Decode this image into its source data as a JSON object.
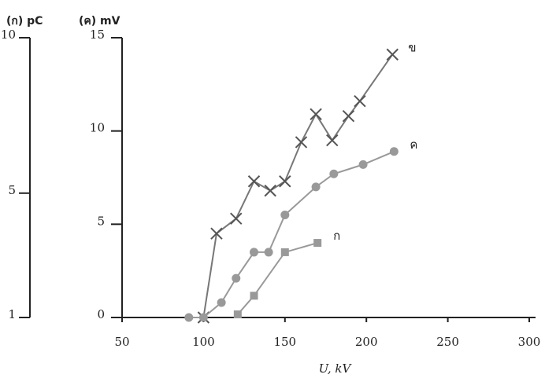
{
  "chart_data": {
    "type": "line",
    "xlabel": "U, kV",
    "ylabel": "(ค) mV",
    "y2label": "(ก) pC",
    "xlim": [
      50,
      300
    ],
    "xticks": [
      50,
      100,
      150,
      200,
      250,
      300
    ],
    "ylim": [
      0,
      15
    ],
    "yticks": [
      0,
      5,
      10,
      15
    ],
    "y2lim": [
      1,
      10
    ],
    "y2ticks": [
      1,
      5,
      10
    ],
    "series": [
      {
        "name": "ข",
        "color": "#777777",
        "marker": "x",
        "x": [
          100,
          108,
          120,
          131,
          141,
          150,
          160,
          169,
          179,
          189,
          196,
          216
        ],
        "values": [
          0,
          4.5,
          5.3,
          7.3,
          6.8,
          7.3,
          9.4,
          10.9,
          9.5,
          10.8,
          11.6,
          14.1
        ]
      },
      {
        "name": "ค",
        "color": "#999999",
        "marker": "o",
        "x": [
          91,
          100,
          111,
          120,
          131,
          140,
          150,
          169,
          180,
          198,
          217
        ],
        "values": [
          0,
          0,
          0.8,
          2.1,
          3.5,
          3.5,
          5.5,
          7.0,
          7.7,
          8.2,
          8.9
        ]
      },
      {
        "name": "ก",
        "color": "#999999",
        "marker": "s",
        "axis": "y2",
        "x": [
          121,
          131,
          150,
          170
        ],
        "values": [
          1.1,
          1.7,
          3.1,
          3.4
        ]
      }
    ]
  }
}
